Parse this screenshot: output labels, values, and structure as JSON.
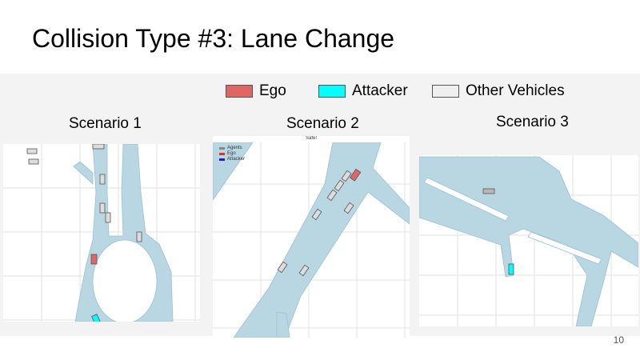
{
  "slide": {
    "title": "Collision Type #3: Lane Change",
    "page_number": "10"
  },
  "legend": {
    "items": [
      {
        "label": "Ego",
        "color": "#e06666"
      },
      {
        "label": "Attacker",
        "color": "#00ffff"
      },
      {
        "label": "Other Vehicles",
        "color": "#efefef"
      }
    ]
  },
  "colors": {
    "road": "#b9d7e3",
    "road_edge": "#9cc0d0",
    "grid": "#e2e2e2",
    "vehicle_outline": "#555555"
  },
  "scenarios": [
    {
      "label": "Scenario 1"
    },
    {
      "label": "Scenario 2",
      "plot_title": "Safe!",
      "plot_legend": [
        {
          "label": "Agents",
          "color": "#888888"
        },
        {
          "label": "Ego",
          "color": "#e03030"
        },
        {
          "label": "Attacker",
          "color": "#2020c0"
        }
      ]
    },
    {
      "label": "Scenario 3"
    }
  ]
}
